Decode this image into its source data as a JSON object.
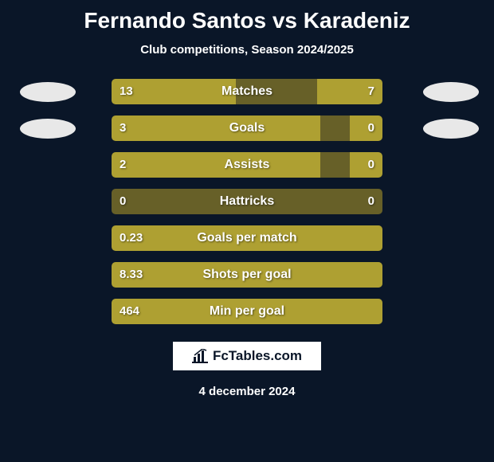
{
  "colors": {
    "background": "#0a1628",
    "bar_dark": "#676028",
    "bar_light": "#aea032",
    "photo_fill": "#e8e8e8",
    "title_color": "#ffffff",
    "text_color": "#ffffff",
    "logo_bg": "#ffffff",
    "logo_text": "#0a1628"
  },
  "title": {
    "player1": "Fernando Santos",
    "vs": "vs",
    "player2": "Karadeniz",
    "fontsize": 28
  },
  "subtitle": "Club competitions, Season 2024/2025",
  "rows": [
    {
      "label": "Matches",
      "val_left": "13",
      "val_right": "7",
      "fill_left_pct": 46,
      "fill_left_color": "#aea032",
      "fill_right_pct": 24,
      "fill_right_color": "#aea032",
      "photo_left": true,
      "photo_right": true
    },
    {
      "label": "Goals",
      "val_left": "3",
      "val_right": "0",
      "fill_left_pct": 77,
      "fill_left_color": "#aea032",
      "fill_right_pct": 12,
      "fill_right_color": "#aea032",
      "photo_left": true,
      "photo_right": true
    },
    {
      "label": "Assists",
      "val_left": "2",
      "val_right": "0",
      "fill_left_pct": 77,
      "fill_left_color": "#aea032",
      "fill_right_pct": 12,
      "fill_right_color": "#aea032",
      "photo_left": false,
      "photo_right": false
    },
    {
      "label": "Hattricks",
      "val_left": "0",
      "val_right": "0",
      "fill_left_pct": 0,
      "fill_left_color": "#aea032",
      "fill_right_pct": 0,
      "fill_right_color": "#aea032",
      "photo_left": false,
      "photo_right": false
    },
    {
      "label": "Goals per match",
      "val_left": "0.23",
      "val_right": "",
      "fill_left_pct": 100,
      "fill_left_color": "#aea032",
      "fill_right_pct": 0,
      "fill_right_color": "#aea032",
      "photo_left": false,
      "photo_right": false
    },
    {
      "label": "Shots per goal",
      "val_left": "8.33",
      "val_right": "",
      "fill_left_pct": 100,
      "fill_left_color": "#aea032",
      "fill_right_pct": 0,
      "fill_right_color": "#aea032",
      "photo_left": false,
      "photo_right": false
    },
    {
      "label": "Min per goal",
      "val_left": "464",
      "val_right": "",
      "fill_left_pct": 100,
      "fill_left_color": "#aea032",
      "fill_right_pct": 0,
      "fill_right_color": "#aea032",
      "photo_left": false,
      "photo_right": false
    }
  ],
  "logo": {
    "text": "FcTables.com"
  },
  "date": "4 december 2024"
}
